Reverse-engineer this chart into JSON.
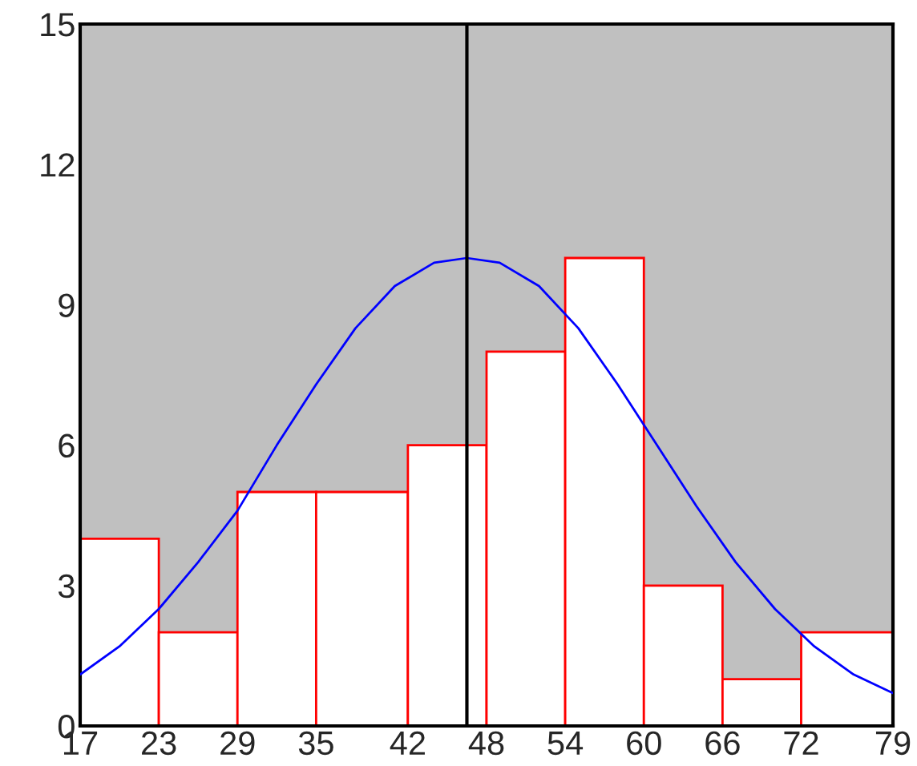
{
  "chart_data": {
    "type": "histogram",
    "bins": [
      17,
      23,
      29,
      35,
      42,
      48,
      54,
      60,
      66,
      72,
      79
    ],
    "values": [
      4,
      2,
      5,
      5,
      6,
      8,
      10,
      3,
      1,
      2
    ],
    "color": "#ffffff",
    "series": [
      {
        "type": "line",
        "color": "#0000ff",
        "x": [
          17,
          20,
          23,
          26,
          29,
          32,
          35,
          38,
          41,
          44,
          46.5,
          49,
          52,
          55,
          58,
          61,
          64,
          67,
          70,
          73,
          76,
          79
        ],
        "values": [
          1.1,
          1.7,
          2.5,
          3.5,
          4.6,
          6.0,
          7.3,
          8.5,
          9.4,
          9.9,
          10,
          9.9,
          9.4,
          8.5,
          7.3,
          6.0,
          4.7,
          3.5,
          2.5,
          1.7,
          1.1,
          0.7
        ]
      }
    ],
    "ref_lines": [
      {
        "axis": "x",
        "value": 46.5,
        "color": "#000000"
      }
    ],
    "xlim": [
      17,
      79
    ],
    "xticks": [
      17,
      23,
      29,
      35,
      42,
      48,
      54,
      60,
      66,
      72,
      79
    ],
    "ylim": [
      0,
      15
    ],
    "yticks": [
      0,
      3,
      6,
      9,
      12,
      15
    ],
    "grid": false,
    "legend": false
  }
}
